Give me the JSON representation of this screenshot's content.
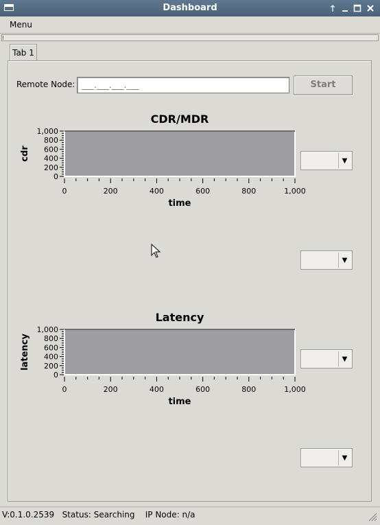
{
  "window": {
    "title": "Dashboard"
  },
  "menubar": {
    "menu_label": "Menu"
  },
  "tabs": [
    {
      "label": "Tab 1"
    }
  ],
  "remote": {
    "label": "Remote Node:",
    "placeholder": "___.___.___.___",
    "start_label": "Start"
  },
  "charts": [
    {
      "title": "CDR/MDR",
      "xlabel": "time",
      "ylabel": "cdr",
      "x_ticks": [
        "0",
        "200",
        "400",
        "600",
        "800",
        "1,000"
      ],
      "y_ticks": [
        "1,000",
        "800",
        "600",
        "400",
        "200",
        "0"
      ]
    },
    {
      "title": "Latency",
      "xlabel": "time",
      "ylabel": "latency",
      "x_ticks": [
        "0",
        "200",
        "400",
        "600",
        "800",
        "1,000"
      ],
      "y_ticks": [
        "1,000",
        "800",
        "600",
        "400",
        "200",
        "0"
      ]
    }
  ],
  "chart_data": [
    {
      "type": "line",
      "title": "CDR/MDR",
      "xlabel": "time",
      "ylabel": "cdr",
      "xlim": [
        0,
        1000
      ],
      "ylim": [
        0,
        1000
      ],
      "series": [],
      "plot_background": "#9e9da2"
    },
    {
      "type": "line",
      "title": "Latency",
      "xlabel": "time",
      "ylabel": "latency",
      "xlim": [
        0,
        1000
      ],
      "ylim": [
        0,
        1000
      ],
      "series": [],
      "plot_background": "#9e9da2"
    }
  ],
  "dropdowns": [
    {
      "value": ""
    },
    {
      "value": ""
    },
    {
      "value": ""
    },
    {
      "value": ""
    }
  ],
  "status": {
    "text": "V:0.1.0.2539   Status: Searching    IP Node: n/a"
  },
  "colors": {
    "titlebar": "#5f7891",
    "window_bg": "#dcdad5",
    "plot_bg": "#9e9da2"
  },
  "icons": {
    "titlebar_buttons": [
      "arrow-up-icon",
      "minimize-icon",
      "maximize-icon",
      "close-icon"
    ],
    "dropdown_arrow": "triangle-down-icon"
  }
}
